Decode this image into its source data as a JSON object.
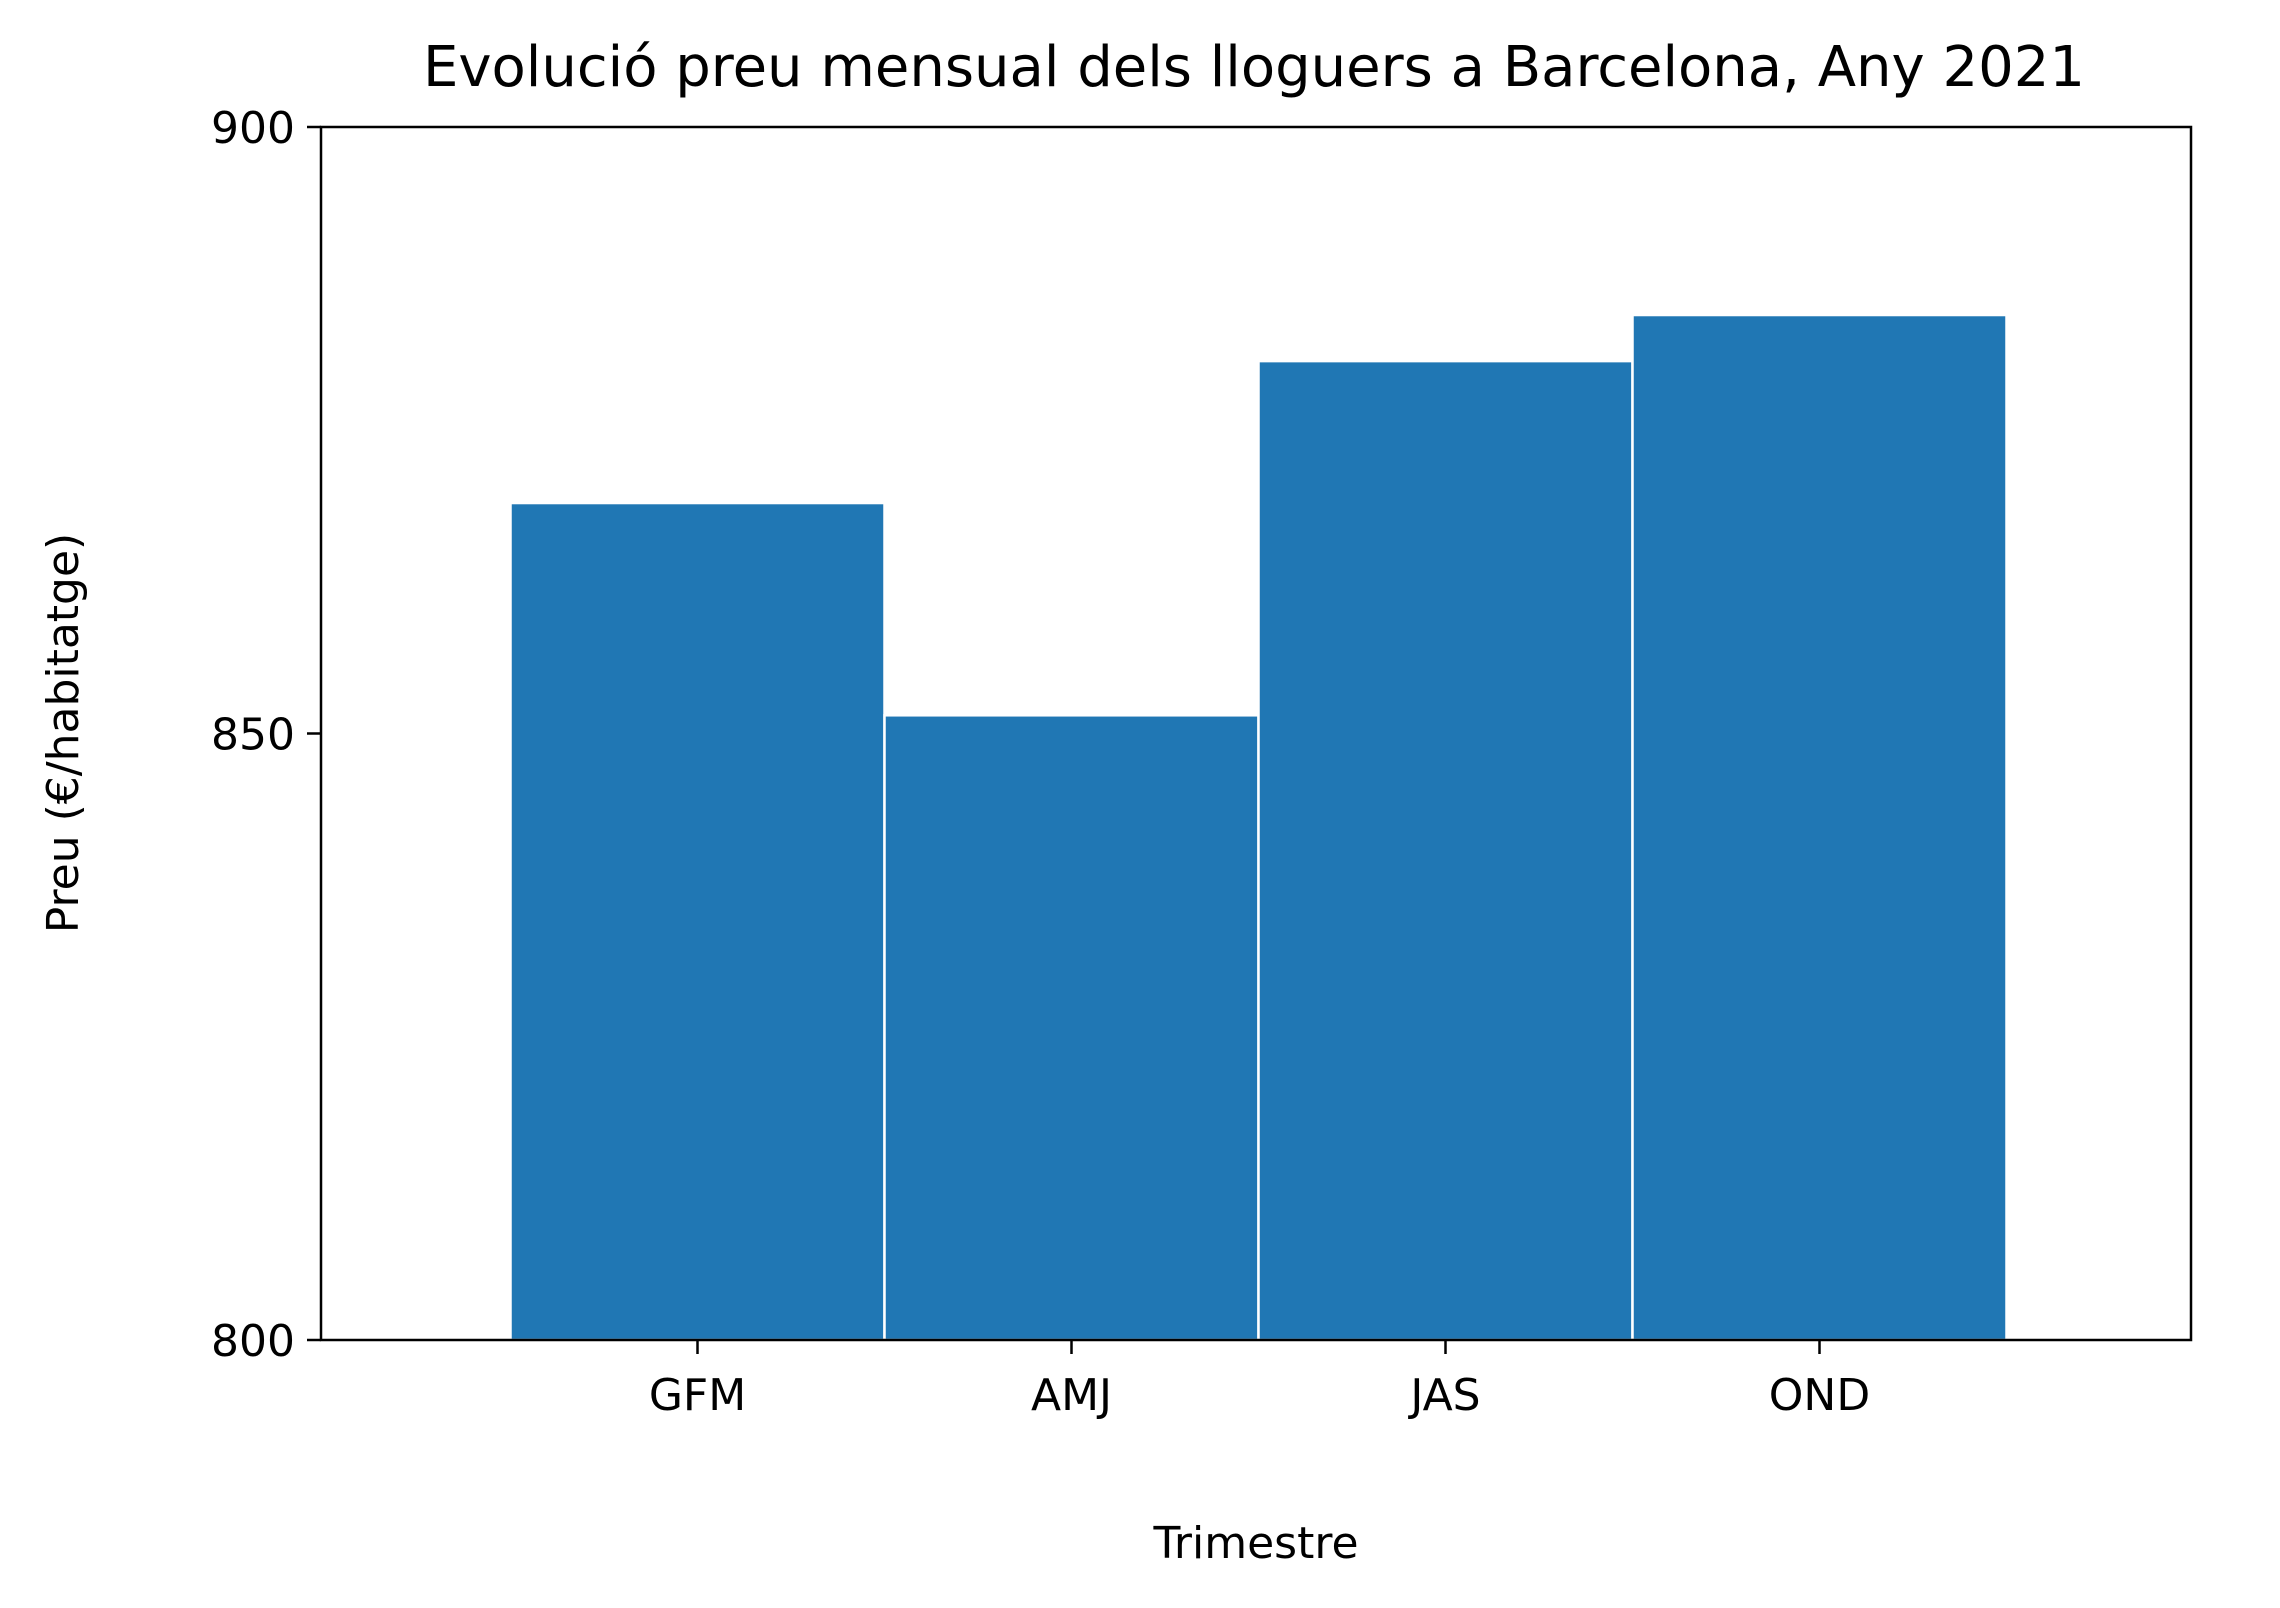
{
  "chart_data": {
    "type": "bar",
    "title": "Evolució preu mensual dels lloguers a Barcelona, Any 2021",
    "xlabel": "Trimestre",
    "ylabel": "Preu (€/habitatge)",
    "categories": [
      "GFM",
      "AMJ",
      "JAS",
      "OND"
    ],
    "values": [
      869,
      851.5,
      880.7,
      884.5
    ],
    "ylim": [
      800,
      900
    ],
    "yticks": [
      "800",
      "850",
      "900"
    ],
    "grid": false,
    "legend": "none",
    "bar_color": "#2077b4",
    "bar_edge_color": "#ffffff"
  }
}
